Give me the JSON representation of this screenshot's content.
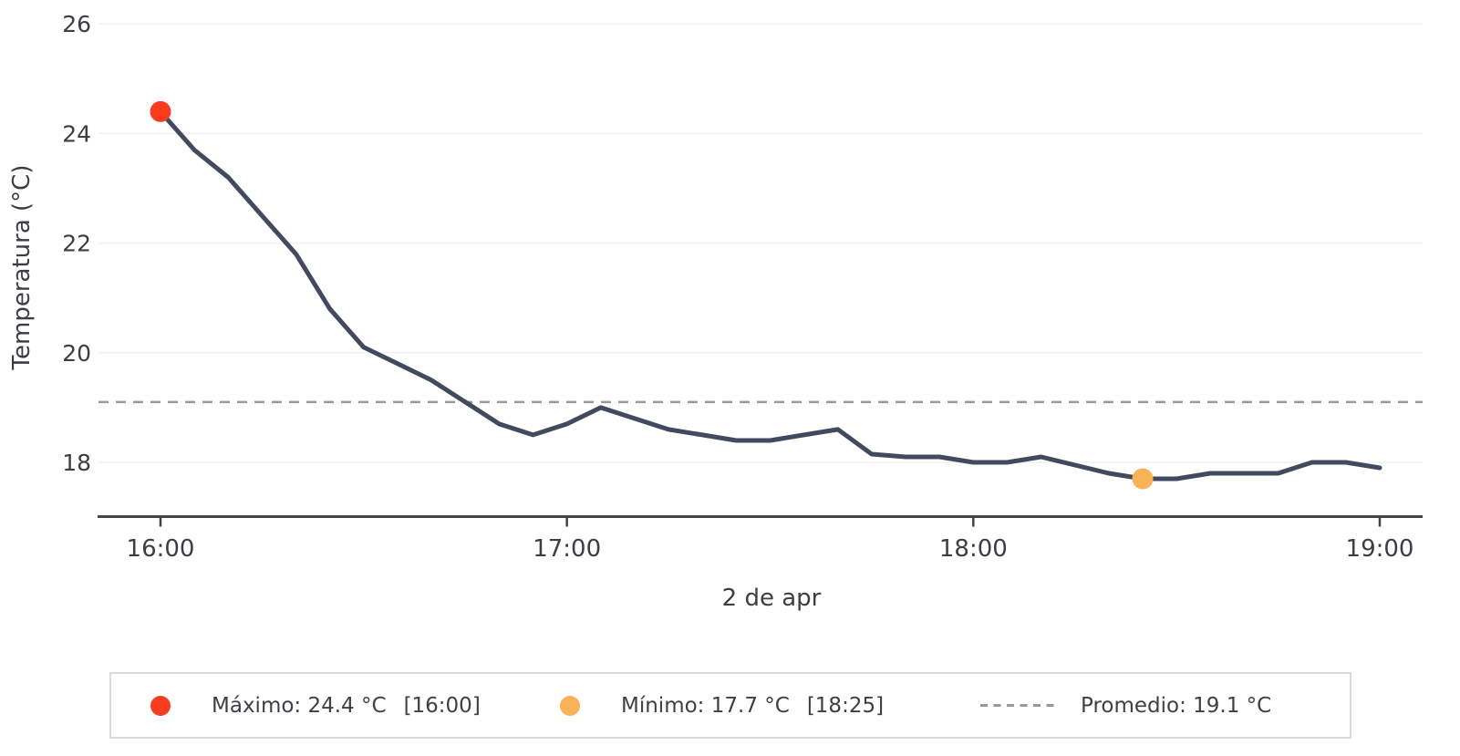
{
  "chart_data": {
    "type": "line",
    "title": "",
    "xlabel": "2 de apr",
    "ylabel": "Temperatura (°C)",
    "x": [
      "16:00",
      "16:05",
      "16:10",
      "16:15",
      "16:20",
      "16:25",
      "16:30",
      "16:35",
      "16:40",
      "16:45",
      "16:50",
      "16:55",
      "17:00",
      "17:05",
      "17:10",
      "17:15",
      "17:20",
      "17:25",
      "17:30",
      "17:35",
      "17:40",
      "17:45",
      "17:50",
      "17:55",
      "18:00",
      "18:05",
      "18:10",
      "18:15",
      "18:20",
      "18:25",
      "18:30",
      "18:35",
      "18:40",
      "18:45",
      "18:50",
      "18:55",
      "19:00"
    ],
    "values": [
      24.4,
      23.7,
      23.2,
      22.5,
      21.8,
      20.8,
      20.1,
      19.8,
      19.5,
      19.1,
      18.7,
      18.5,
      18.7,
      19.0,
      18.8,
      18.6,
      18.5,
      18.4,
      18.4,
      18.5,
      18.6,
      18.15,
      18.1,
      18.1,
      18.0,
      18.0,
      18.1,
      17.95,
      17.8,
      17.7,
      17.7,
      17.8,
      17.8,
      17.8,
      18.0,
      18.0,
      17.9
    ],
    "ylim": [
      17.0,
      26.4
    ],
    "y_ticks": [
      26,
      24,
      22,
      20,
      18
    ],
    "x_tick_labels": [
      "16:00",
      "17:00",
      "18:00",
      "19:00"
    ],
    "x_tick_indices": [
      0,
      12,
      24,
      36
    ],
    "grid": "horizontal",
    "legend_position": "bottom",
    "annotations": {
      "max": {
        "label": "Máximo",
        "value": 24.4,
        "time": "16:00",
        "index": 0
      },
      "min": {
        "label": "Mínimo",
        "value": 17.7,
        "time": "18:25",
        "index": 29
      },
      "average": {
        "label": "Promedio",
        "value": 19.1
      }
    },
    "colors": {
      "line": "#424a5f",
      "max_point": "#f93b1e",
      "min_point": "#f9b257",
      "average_line": "#999999",
      "axis": "#444444",
      "grid": "#f0f0f0",
      "tick_text": "#3d3d43"
    }
  },
  "legend": {
    "max": {
      "label": "Máximo: 24.4 °C",
      "time": "[16:00]"
    },
    "min": {
      "label": "Mínimo: 17.7 °C",
      "time": "[18:25]"
    },
    "avg": {
      "label": "Promedio: 19.1 °C"
    }
  }
}
